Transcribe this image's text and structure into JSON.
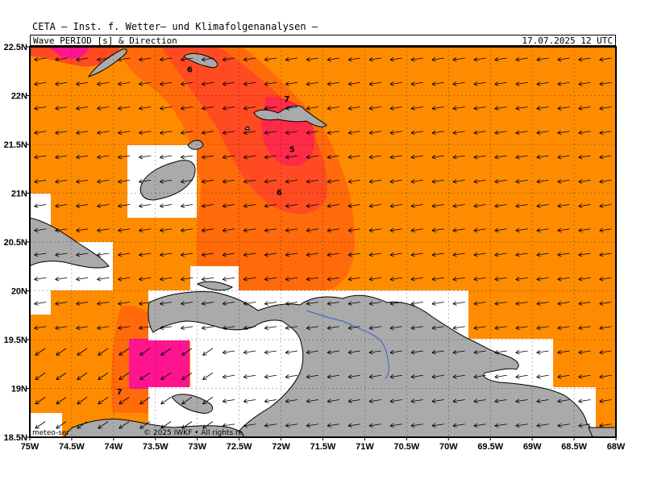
{
  "header": {
    "title": "CETA — Inst. f. Wetter— und Klimafolgenanalysen —",
    "product": "Wave PERIOD [s] & Direction",
    "timestamp": "17.07.2025 12 UTC"
  },
  "axes": {
    "x_ticks": [
      "75W",
      "74.5W",
      "74W",
      "73.5W",
      "73W",
      "72.5W",
      "72W",
      "71.5W",
      "71W",
      "70.5W",
      "70W",
      "69.5W",
      "69W",
      "68.5W",
      "68W"
    ],
    "y_ticks": [
      "22.5N",
      "22N",
      "21.5N",
      "21N",
      "20.5N",
      "20N",
      "19.5N",
      "19N",
      "18.5N"
    ]
  },
  "contour_labels": [
    {
      "text": "6",
      "lon": -73.09,
      "lat": 22.24
    },
    {
      "text": "7",
      "lon": -71.93,
      "lat": 21.94
    },
    {
      "text": "5",
      "lon": -71.87,
      "lat": 21.42
    },
    {
      "text": "6",
      "lon": -72.02,
      "lat": 20.98
    },
    {
      "text": "7",
      "lon": -73.93,
      "lat": 18.94
    }
  ],
  "footer": {
    "source": "meteo-ser",
    "copyright": "© 2025 IWKF • All rights re"
  },
  "colors": {
    "sea_default": "#ff8c00",
    "period_6_7": "#ff6a0a",
    "period_5_6": "#ff4a22",
    "period_4_5": "#ff2a48",
    "period_high_pink": "#ff1490",
    "land": "#aaaaaa",
    "river": "#3a5fd0"
  }
}
